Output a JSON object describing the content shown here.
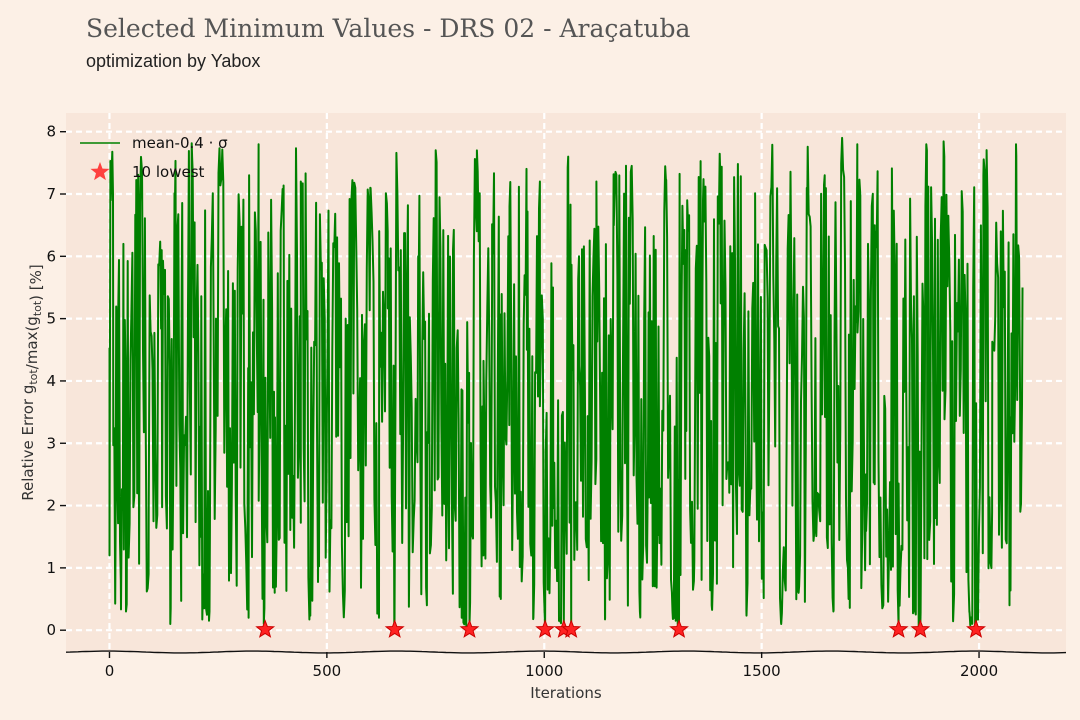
{
  "header": {
    "title": "Selected Minimum Values - DRS 02 - Araçatuba",
    "subtitle": "optimization by Yabox"
  },
  "chart_data": {
    "type": "line",
    "title": "Selected Minimum Values - DRS 02 - Araçatuba",
    "subtitle": "optimization by Yabox",
    "xlabel": "Iterations",
    "ylabel": "Relative Error g_tot/max(g_tot) [%]",
    "xlim": [
      -100,
      2200
    ],
    "ylim": [
      -0.35,
      8.3
    ],
    "xticks": [
      0,
      500,
      1000,
      1500,
      2000
    ],
    "yticks": [
      0,
      1,
      2,
      3,
      4,
      5,
      6,
      7,
      8
    ],
    "grid": true,
    "legend_position": "top-left",
    "series": [
      {
        "name": "mean-0.4 · σ",
        "kind": "line",
        "color": "#008000",
        "description": "noisy oscillating relative error over 2100 iterations, ranging roughly 0.05 to 7.9",
        "x_range": [
          0,
          2100
        ],
        "y_range": [
          0.05,
          7.9
        ],
        "points": [
          [
            0,
            1.2
          ],
          [
            3,
            6.9
          ],
          [
            8,
            7.0
          ],
          [
            14,
            1.6
          ],
          [
            20,
            5.1
          ],
          [
            26,
            0.8
          ],
          [
            32,
            6.2
          ],
          [
            38,
            0.3
          ],
          [
            60,
            4.8
          ],
          [
            75,
            7.2
          ],
          [
            90,
            0.9
          ],
          [
            120,
            6.1
          ],
          [
            140,
            0.1
          ],
          [
            150,
            6.5
          ],
          [
            165,
            4.1
          ],
          [
            190,
            7.6
          ],
          [
            210,
            1.5
          ],
          [
            230,
            0.3
          ],
          [
            245,
            5.0
          ],
          [
            260,
            7.6
          ],
          [
            275,
            2.2
          ],
          [
            300,
            6.2
          ],
          [
            320,
            0.2
          ],
          [
            343,
            7.8
          ],
          [
            355,
            0.1
          ],
          [
            365,
            5.0
          ],
          [
            380,
            0.6
          ],
          [
            400,
            6.8
          ],
          [
            420,
            2.9
          ],
          [
            440,
            7.2
          ],
          [
            460,
            0.3
          ],
          [
            480,
            1.2
          ],
          [
            500,
            3.5
          ],
          [
            520,
            6.0
          ],
          [
            540,
            0.4
          ],
          [
            560,
            7.0
          ],
          [
            580,
            2.1
          ],
          [
            600,
            7.1
          ],
          [
            620,
            0.2
          ],
          [
            640,
            6.4
          ],
          [
            655,
            0.05
          ],
          [
            670,
            6.1
          ],
          [
            690,
            1.6
          ],
          [
            710,
            6.0
          ],
          [
            730,
            0.4
          ],
          [
            750,
            7.2
          ],
          [
            770,
            2.4
          ],
          [
            790,
            6.1
          ],
          [
            810,
            0.2
          ],
          [
            828,
            0.1
          ],
          [
            845,
            7.7
          ],
          [
            860,
            1.2
          ],
          [
            880,
            5.6
          ],
          [
            900,
            0.5
          ],
          [
            920,
            6.8
          ],
          [
            940,
            1.9
          ],
          [
            960,
            4.5
          ],
          [
            975,
            0.2
          ],
          [
            990,
            7.2
          ],
          [
            1002,
            0.05
          ],
          [
            1020,
            5.5
          ],
          [
            1035,
            0.2
          ],
          [
            1045,
            0.1
          ],
          [
            1055,
            7.6
          ],
          [
            1062,
            0.05
          ],
          [
            1080,
            6.0
          ],
          [
            1100,
            1.5
          ],
          [
            1120,
            7.2
          ],
          [
            1140,
            0.2
          ],
          [
            1160,
            6.5
          ],
          [
            1180,
            3.1
          ],
          [
            1200,
            7.4
          ],
          [
            1220,
            0.3
          ],
          [
            1240,
            5.1
          ],
          [
            1260,
            1.7
          ],
          [
            1280,
            7.2
          ],
          [
            1295,
            0.3
          ],
          [
            1310,
            0.05
          ],
          [
            1325,
            6.1
          ],
          [
            1345,
            1.1
          ],
          [
            1365,
            6.9
          ],
          [
            1385,
            0.4
          ],
          [
            1405,
            7.3
          ],
          [
            1425,
            2.7
          ],
          [
            1445,
            7.0
          ],
          [
            1465,
            0.3
          ],
          [
            1485,
            6.1
          ],
          [
            1505,
            1.9
          ],
          [
            1525,
            7.5
          ],
          [
            1545,
            0.1
          ],
          [
            1565,
            5.9
          ],
          [
            1585,
            0.6
          ],
          [
            1605,
            6.9
          ],
          [
            1625,
            2.6
          ],
          [
            1645,
            7.3
          ],
          [
            1665,
            0.3
          ],
          [
            1685,
            7.9
          ],
          [
            1700,
            0.5
          ],
          [
            1720,
            7.8
          ],
          [
            1740,
            2.5
          ],
          [
            1760,
            6.5
          ],
          [
            1780,
            0.6
          ],
          [
            1800,
            7.0
          ],
          [
            1815,
            0.05
          ],
          [
            1830,
            5.6
          ],
          [
            1850,
            0.6
          ],
          [
            1865,
            0.05
          ],
          [
            1880,
            7.7
          ],
          [
            1900,
            1.8
          ],
          [
            1920,
            7.6
          ],
          [
            1940,
            0.2
          ],
          [
            1960,
            6.6
          ],
          [
            1978,
            0.3
          ],
          [
            1993,
            0.05
          ],
          [
            2010,
            7.3
          ],
          [
            2030,
            1.9
          ],
          [
            2050,
            6.4
          ],
          [
            2070,
            0.4
          ],
          [
            2085,
            7.8
          ],
          [
            2095,
            1.9
          ],
          [
            2100,
            5.5
          ]
        ]
      },
      {
        "name": "10 lowest",
        "kind": "scatter",
        "marker": "star",
        "color": "#ff2222",
        "points": [
          [
            358,
            0.01
          ],
          [
            656,
            0.01
          ],
          [
            828,
            0.01
          ],
          [
            1002,
            0.01
          ],
          [
            1045,
            0.01
          ],
          [
            1062,
            0.01
          ],
          [
            1310,
            0.01
          ],
          [
            1815,
            0.01
          ],
          [
            1865,
            0.01
          ],
          [
            1993,
            0.01
          ]
        ]
      }
    ]
  }
}
